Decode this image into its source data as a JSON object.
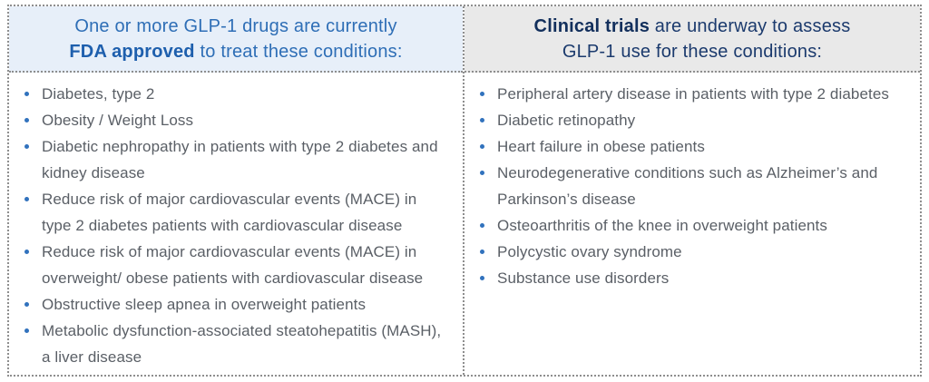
{
  "table": {
    "columns": [
      {
        "id": "fda-approved",
        "header": {
          "line1": "One or more GLP-1 drugs are currently",
          "line2_bold": "FDA approved",
          "line2_rest": " to treat these conditions:"
        },
        "items": [
          "Diabetes, type 2",
          "Obesity / Weight Loss",
          "Diabetic nephropathy in patients with type 2 diabetes and kidney disease",
          "Reduce risk of major cardiovascular events (MACE) in type 2 diabetes patients with cardiovascular disease",
          "Reduce risk of major cardiovascular events (MACE) in overweight/ obese patients with cardiovascular disease",
          "Obstructive sleep apnea in overweight patients",
          "Metabolic dysfunction-associated steatohepatitis (MASH), a liver disease"
        ]
      },
      {
        "id": "clinical-trials",
        "header": {
          "line1_bold": "Clinical trials",
          "line1_rest": " are underway to assess",
          "line2": "GLP-1 use for these conditions:"
        },
        "items": [
          "Peripheral artery disease in patients with type 2 diabetes",
          "Diabetic retinopathy",
          "Heart failure in obese patients",
          "Neurodegenerative conditions such as Alzheimer’s and Parkinson’s disease",
          "Osteoarthritis of the knee in overweight patients",
          "Polycystic ovary syndrome",
          "Substance use disorders"
        ]
      }
    ]
  },
  "colors": {
    "left_header_bg": "#e7eff9",
    "left_header_text": "#2e6eb6",
    "left_header_bold_text": "#1e5fad",
    "right_header_bg": "#e9e9e9",
    "right_header_text": "#1b3a6d",
    "body_text": "#5a5f66",
    "bullet": "#3172bd",
    "dotted_border": "#8e8e8e"
  }
}
